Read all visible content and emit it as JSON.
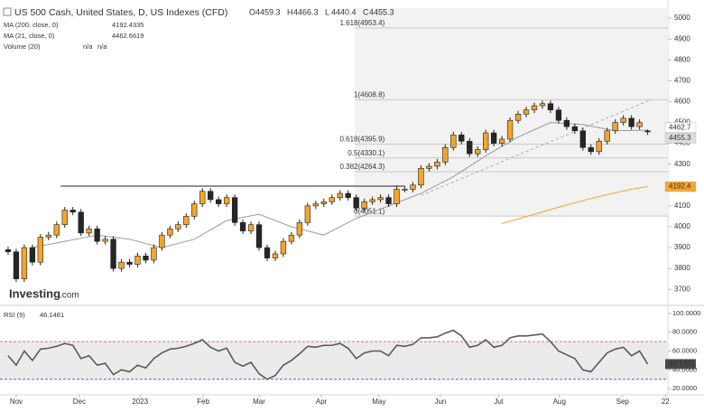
{
  "chart_data": [
    {
      "type": "candlestick",
      "title": "US 500 Cash, United States, D, US Indexes (CFD)",
      "ohlc_letters": [
        "O",
        "H",
        "L",
        "C"
      ],
      "ohlc": [
        [
          3890,
          3905,
          3865,
          3880
        ],
        [
          3880,
          3895,
          3735,
          3750
        ],
        [
          3750,
          3915,
          3735,
          3900
        ],
        [
          3900,
          3915,
          3815,
          3830
        ],
        [
          3830,
          3965,
          3815,
          3950
        ],
        [
          3950,
          3975,
          3935,
          3960
        ],
        [
          3960,
          4025,
          3945,
          4010
        ],
        [
          4010,
          4095,
          3995,
          4080
        ],
        [
          4080,
          4095,
          4055,
          4070
        ],
        [
          4070,
          4085,
          3955,
          3970
        ],
        [
          3970,
          4005,
          3955,
          3990
        ],
        [
          3990,
          4005,
          3915,
          3930
        ],
        [
          3930,
          3955,
          3915,
          3940
        ],
        [
          3940,
          3955,
          3785,
          3800
        ],
        [
          3800,
          3845,
          3785,
          3830
        ],
        [
          3830,
          3845,
          3805,
          3820
        ],
        [
          3820,
          3875,
          3805,
          3860
        ],
        [
          3860,
          3875,
          3825,
          3840
        ],
        [
          3840,
          3915,
          3825,
          3900
        ],
        [
          3900,
          3975,
          3885,
          3960
        ],
        [
          3960,
          4005,
          3945,
          3990
        ],
        [
          3990,
          4025,
          3975,
          4010
        ],
        [
          4010,
          4065,
          3995,
          4050
        ],
        [
          4050,
          4125,
          4035,
          4110
        ],
        [
          4110,
          4185,
          4095,
          4170
        ],
        [
          4170,
          4185,
          4115,
          4130
        ],
        [
          4130,
          4145,
          4095,
          4110
        ],
        [
          4110,
          4155,
          4095,
          4140
        ],
        [
          4140,
          4155,
          4005,
          4020
        ],
        [
          4020,
          4035,
          3965,
          3980
        ],
        [
          3980,
          4025,
          3965,
          4010
        ],
        [
          4010,
          4025,
          3885,
          3900
        ],
        [
          3900,
          3915,
          3835,
          3850
        ],
        [
          3850,
          3885,
          3835,
          3870
        ],
        [
          3870,
          3945,
          3855,
          3930
        ],
        [
          3930,
          3975,
          3915,
          3960
        ],
        [
          3960,
          4035,
          3945,
          4020
        ],
        [
          4020,
          4115,
          4005,
          4100
        ],
        [
          4100,
          4125,
          4085,
          4110
        ],
        [
          4110,
          4135,
          4095,
          4120
        ],
        [
          4120,
          4155,
          4105,
          4140
        ],
        [
          4140,
          4175,
          4125,
          4160
        ],
        [
          4160,
          4175,
          4125,
          4140
        ],
        [
          4140,
          4155,
          4075,
          4090
        ],
        [
          4090,
          4135,
          4075,
          4120
        ],
        [
          4120,
          4145,
          4105,
          4130
        ],
        [
          4130,
          4155,
          4115,
          4140
        ],
        [
          4140,
          4155,
          4095,
          4110
        ],
        [
          4110,
          4195,
          4095,
          4180
        ],
        [
          4180,
          4195,
          4165,
          4180
        ],
        [
          4180,
          4215,
          4165,
          4200
        ],
        [
          4200,
          4295,
          4185,
          4280
        ],
        [
          4280,
          4305,
          4265,
          4290
        ],
        [
          4290,
          4325,
          4275,
          4310
        ],
        [
          4310,
          4395,
          4295,
          4380
        ],
        [
          4380,
          4455,
          4365,
          4440
        ],
        [
          4440,
          4455,
          4395,
          4410
        ],
        [
          4410,
          4425,
          4335,
          4350
        ],
        [
          4350,
          4385,
          4335,
          4370
        ],
        [
          4370,
          4465,
          4355,
          4450
        ],
        [
          4450,
          4465,
          4385,
          4400
        ],
        [
          4400,
          4435,
          4385,
          4420
        ],
        [
          4420,
          4525,
          4405,
          4510
        ],
        [
          4510,
          4555,
          4495,
          4540
        ],
        [
          4540,
          4575,
          4525,
          4560
        ],
        [
          4560,
          4595,
          4545,
          4580
        ],
        [
          4580,
          4605,
          4565,
          4590
        ],
        [
          4590,
          4605,
          4545,
          4560
        ],
        [
          4560,
          4575,
          4495,
          4510
        ],
        [
          4510,
          4525,
          4465,
          4480
        ],
        [
          4480,
          4495,
          4445,
          4460
        ],
        [
          4460,
          4475,
          4365,
          4380
        ],
        [
          4380,
          4395,
          4345,
          4360
        ],
        [
          4360,
          4425,
          4345,
          4410
        ],
        [
          4410,
          4475,
          4395,
          4460
        ],
        [
          4460,
          4515,
          4445,
          4500
        ],
        [
          4500,
          4535,
          4485,
          4520
        ],
        [
          4520,
          4535,
          4465,
          4480
        ],
        [
          4480,
          4515,
          4465,
          4500
        ],
        [
          4459.3,
          4466.3,
          4440.4,
          4455.3
        ]
      ],
      "colors": {
        "up": "#f4a52c",
        "down": "#262626"
      },
      "xlim": [
        0,
        82.5
      ],
      "xticks": [
        {
          "value": 2,
          "label": "Nov"
        },
        {
          "value": 9.8,
          "label": "Dec"
        },
        {
          "value": 17.3,
          "label": "2023"
        },
        {
          "value": 25.1,
          "label": "Feb"
        },
        {
          "value": 32,
          "label": "Mar"
        },
        {
          "value": 39.7,
          "label": "Apr"
        },
        {
          "value": 46.8,
          "label": "May"
        },
        {
          "value": 54.4,
          "label": "Jun"
        },
        {
          "value": 61.6,
          "label": "Jul"
        },
        {
          "value": 69.1,
          "label": "Aug"
        },
        {
          "value": 76.9,
          "label": "Sep"
        },
        {
          "value": 82.2,
          "label": "22"
        }
      ],
      "ylim": [
        3636,
        5087
      ],
      "yticks": [
        3700,
        3800,
        3900,
        4000,
        4100,
        4200,
        4300,
        4400,
        4500,
        4600,
        4700,
        4800,
        4900,
        5000
      ],
      "series": [
        {
          "name": "MA (200, close, 0)",
          "color": "#f4a52c",
          "x": [
            62,
            66,
            70,
            74,
            78,
            80
          ],
          "values": [
            4015,
            4060,
            4105,
            4145,
            4180,
            4192.4335
          ],
          "value_labels": [
            null,
            null,
            null,
            null,
            null,
            "4192.4"
          ]
        },
        {
          "name": "MA (21, close, 0)",
          "color": "#9a9a9a",
          "x": [
            4,
            8,
            12,
            16,
            20,
            24,
            28,
            32,
            36,
            40,
            44,
            48,
            52,
            56,
            60,
            64,
            68,
            72,
            76,
            80
          ],
          "values": [
            3900,
            3930,
            3960,
            3940,
            3900,
            3940,
            4030,
            4060,
            4000,
            3960,
            4040,
            4100,
            4160,
            4240,
            4340,
            4430,
            4500,
            4490,
            4460,
            4462.6619
          ],
          "value_labels": [
            null,
            null,
            null,
            null,
            null,
            null,
            null,
            null,
            null,
            null,
            null,
            null,
            null,
            null,
            null,
            null,
            null,
            null,
            null,
            "4462.7"
          ]
        }
      ],
      "volume": {
        "name": "Volume (20)",
        "values": [
          "n/a",
          "n/a"
        ]
      },
      "fibonacci": {
        "x_start": 43.8,
        "levels": [
          {
            "value": 4953.4,
            "label": "1.618(4953.4)"
          },
          {
            "value": 4608.8,
            "label": "1(4608.8)"
          },
          {
            "value": 4395.9,
            "label": "0.618(4395.9)"
          },
          {
            "value": 4330.1,
            "label": "0.5(4330.1)"
          },
          {
            "value": 4264.3,
            "label": "0.382(4264.3)"
          },
          {
            "value": 4051.1,
            "label": "0(4051.1)"
          }
        ]
      },
      "trendlines": [
        {
          "x": [
            7.5,
            50
          ],
          "values": [
            4195,
            4195
          ],
          "color": "#222222",
          "dashed": false
        },
        {
          "x": [
            52,
            80.5
          ],
          "values": [
            4150,
            4610
          ],
          "color": "#aaaaaa",
          "dashed": true
        }
      ],
      "logo": "Investing",
      "logo_suffix": ".com"
    },
    {
      "type": "line",
      "series": [
        {
          "name": "RSI (9)",
          "color": "#5a5a5a",
          "x": [
            1,
            2,
            3,
            4,
            5,
            6,
            7,
            8,
            9,
            10,
            11,
            12,
            13,
            14,
            15,
            16,
            17,
            18,
            19,
            20,
            21,
            22,
            23,
            24,
            25,
            26,
            27,
            28,
            29,
            30,
            31,
            32,
            33,
            34,
            35,
            36,
            37,
            38,
            39,
            40,
            41,
            42,
            43,
            44,
            45,
            46,
            47,
            48,
            49,
            50,
            51,
            52,
            53,
            54,
            55,
            56,
            57,
            58,
            59,
            60,
            61,
            62,
            63,
            64,
            65,
            66,
            67,
            68,
            69,
            70,
            71,
            72,
            73,
            74,
            75,
            76,
            77,
            78,
            79,
            80
          ],
          "values": [
            55,
            45,
            60,
            50,
            62,
            63,
            65,
            68,
            66,
            52,
            55,
            45,
            47,
            35,
            40,
            38,
            45,
            42,
            52,
            58,
            62,
            63,
            65,
            68,
            72,
            64,
            60,
            63,
            48,
            44,
            48,
            36,
            30,
            34,
            45,
            50,
            57,
            65,
            64,
            66,
            66,
            68,
            63,
            52,
            58,
            60,
            60,
            55,
            66,
            65,
            67,
            74,
            74,
            75,
            79,
            82,
            76,
            64,
            66,
            72,
            64,
            66,
            74,
            76,
            76,
            77,
            78,
            70,
            60,
            56,
            52,
            40,
            38,
            48,
            58,
            62,
            64,
            55,
            60,
            46.1481
          ]
        }
      ],
      "xlim": [
        0,
        82.5
      ],
      "ylim": [
        13.5,
        106.5
      ],
      "yticks": [
        {
          "value": 20,
          "label": "20.0000"
        },
        {
          "value": 40,
          "label": "40.0000"
        },
        {
          "value": 60,
          "label": "60.0000"
        },
        {
          "value": 80,
          "label": "80.0000"
        },
        {
          "value": 100,
          "label": "100.0000"
        }
      ],
      "reference_lines": [
        {
          "value": 70,
          "color": "#e07070"
        },
        {
          "value": 30,
          "color": "#5a64d8"
        }
      ]
    }
  ]
}
